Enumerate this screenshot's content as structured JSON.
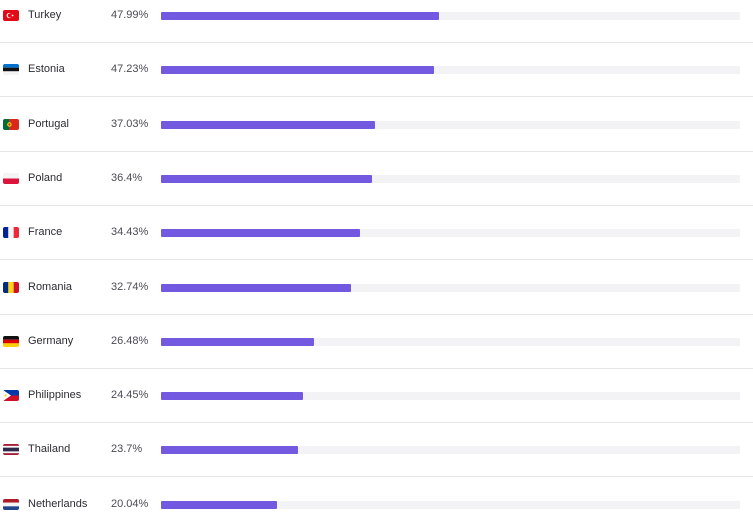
{
  "accent_color": "#7358e0",
  "track_color": "#f3f3f5",
  "rows": [
    {
      "country": "Turkey",
      "percent_label": "47.99%",
      "value": 47.99,
      "flag_icon": "turkey-flag-icon"
    },
    {
      "country": "Estonia",
      "percent_label": "47.23%",
      "value": 47.23,
      "flag_icon": "estonia-flag-icon"
    },
    {
      "country": "Portugal",
      "percent_label": "37.03%",
      "value": 37.03,
      "flag_icon": "portugal-flag-icon"
    },
    {
      "country": "Poland",
      "percent_label": "36.4%",
      "value": 36.4,
      "flag_icon": "poland-flag-icon"
    },
    {
      "country": "France",
      "percent_label": "34.43%",
      "value": 34.43,
      "flag_icon": "france-flag-icon"
    },
    {
      "country": "Romania",
      "percent_label": "32.74%",
      "value": 32.74,
      "flag_icon": "romania-flag-icon"
    },
    {
      "country": "Germany",
      "percent_label": "26.48%",
      "value": 26.48,
      "flag_icon": "germany-flag-icon"
    },
    {
      "country": "Philippines",
      "percent_label": "24.45%",
      "value": 24.45,
      "flag_icon": "philippines-flag-icon"
    },
    {
      "country": "Thailand",
      "percent_label": "23.7%",
      "value": 23.7,
      "flag_icon": "thailand-flag-icon"
    },
    {
      "country": "Netherlands",
      "percent_label": "20.04%",
      "value": 20.04,
      "flag_icon": "netherlands-flag-icon"
    }
  ]
}
